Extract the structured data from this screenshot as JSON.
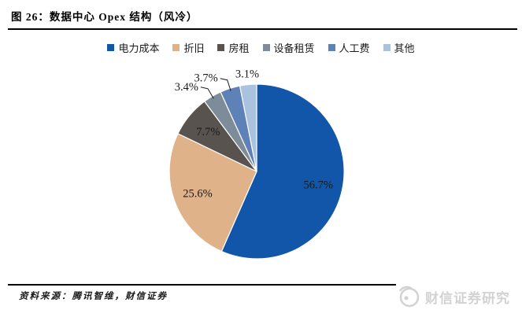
{
  "figure": {
    "title": "图 26：数据中心 Opex 结构（风冷）",
    "source": "资料来源：腾讯智维，财信证券",
    "watermark": "财信证券研究"
  },
  "chart_data": {
    "type": "pie",
    "title": "数据中心 Opex 结构（风冷）",
    "categories": [
      "电力成本",
      "折旧",
      "房租",
      "设备租赁",
      "人工费",
      "其他"
    ],
    "values": [
      56.7,
      25.6,
      7.7,
      3.4,
      3.7,
      3.1
    ],
    "labels": [
      "56.7%",
      "25.6%",
      "7.7%",
      "3.4%",
      "3.7%",
      "3.1%"
    ],
    "colors": [
      "#1156A8",
      "#DFB28A",
      "#59534F",
      "#7E8B99",
      "#5E81B8",
      "#A9C2DE"
    ],
    "legend_position": "top",
    "start_angle_deg": 0,
    "direction": "clockwise",
    "label_text_color": "#1a1a1a"
  }
}
